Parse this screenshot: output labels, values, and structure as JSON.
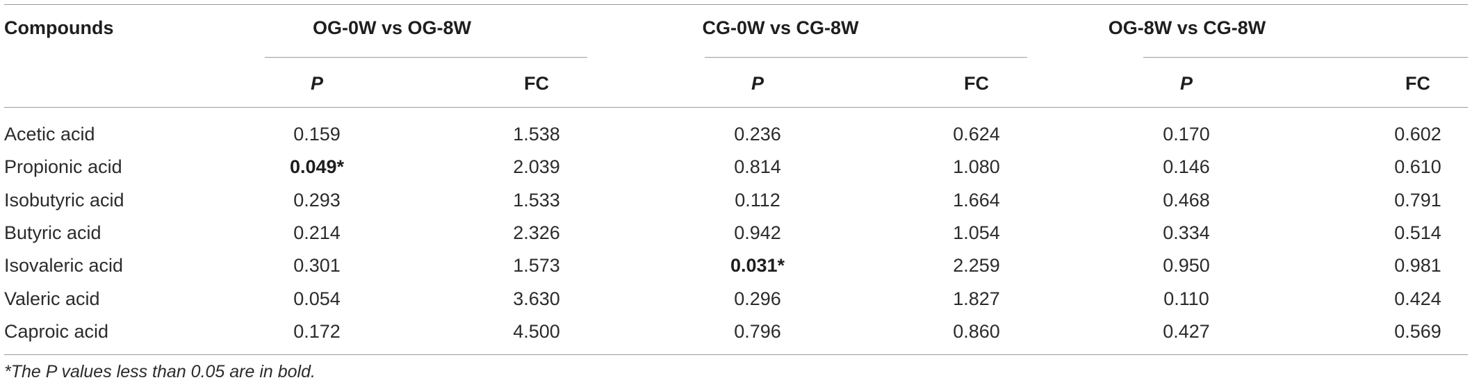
{
  "table": {
    "headers": {
      "compounds": "Compounds",
      "groups": [
        "OG-0W vs OG-8W",
        "CG-0W vs CG-8W",
        "OG-8W vs CG-8W"
      ],
      "p_label": "P",
      "fc_label": "FC"
    },
    "rows": [
      {
        "compound": "Acetic acid",
        "values": [
          "0.159",
          "1.538",
          "0.236",
          "0.624",
          "0.170",
          "0.602"
        ],
        "bold": [
          false,
          false,
          false,
          false,
          false,
          false
        ]
      },
      {
        "compound": "Propionic acid",
        "values": [
          "0.049*",
          "2.039",
          "0.814",
          "1.080",
          "0.146",
          "0.610"
        ],
        "bold": [
          true,
          false,
          false,
          false,
          false,
          false
        ]
      },
      {
        "compound": "Isobutyric acid",
        "values": [
          "0.293",
          "1.533",
          "0.112",
          "1.664",
          "0.468",
          "0.791"
        ],
        "bold": [
          false,
          false,
          false,
          false,
          false,
          false
        ]
      },
      {
        "compound": "Butyric acid",
        "values": [
          "0.214",
          "2.326",
          "0.942",
          "1.054",
          "0.334",
          "0.514"
        ],
        "bold": [
          false,
          false,
          false,
          false,
          false,
          false
        ]
      },
      {
        "compound": "Isovaleric acid",
        "values": [
          "0.301",
          "1.573",
          "0.031*",
          "2.259",
          "0.950",
          "0.981"
        ],
        "bold": [
          false,
          false,
          true,
          false,
          false,
          false
        ]
      },
      {
        "compound": "Valeric acid",
        "values": [
          "0.054",
          "3.630",
          "0.296",
          "1.827",
          "0.110",
          "0.424"
        ],
        "bold": [
          false,
          false,
          false,
          false,
          false,
          false
        ]
      },
      {
        "compound": "Caproic acid",
        "values": [
          "0.172",
          "4.500",
          "0.796",
          "0.860",
          "0.427",
          "0.569"
        ],
        "bold": [
          false,
          false,
          false,
          false,
          false,
          false
        ]
      }
    ]
  },
  "footnote": "*The P values less than 0.05 are in bold."
}
